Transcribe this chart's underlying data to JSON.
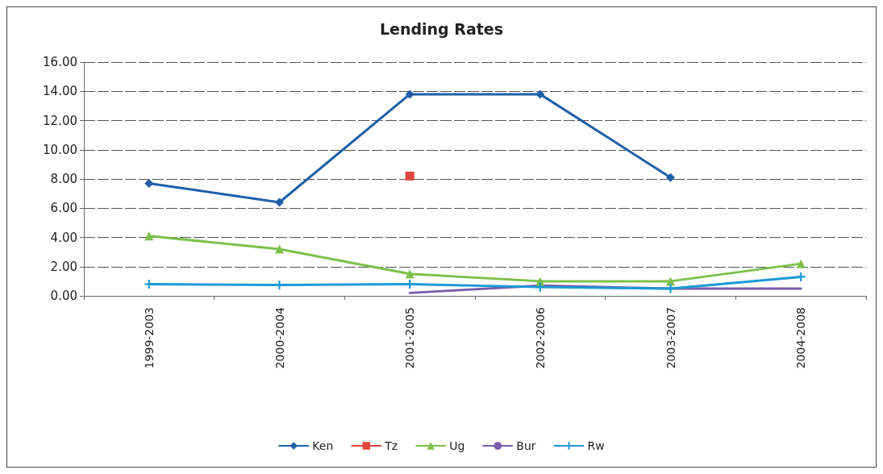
{
  "chart_data": {
    "type": "line",
    "title": "Lending Rates",
    "categories": [
      "1999-2003",
      "2000-2004",
      "2001-2005",
      "2002-2006",
      "2003-2007",
      "2004-2008"
    ],
    "series": [
      {
        "name": "Ken",
        "color": "#1f5fa8",
        "marker": "diamond",
        "values": [
          7.7,
          6.4,
          13.8,
          13.8,
          8.1,
          null
        ]
      },
      {
        "name": "Tz",
        "color": "#e0463f",
        "marker": "square",
        "values": [
          null,
          null,
          8.2,
          null,
          null,
          null
        ]
      },
      {
        "name": "Ug",
        "color": "#7cc04a",
        "marker": "triangle",
        "values": [
          4.1,
          3.2,
          1.5,
          1.0,
          1.0,
          2.2
        ]
      },
      {
        "name": "Bur",
        "color": "#7a5ba8",
        "marker": "none",
        "values": [
          null,
          null,
          0.2,
          0.7,
          0.5,
          0.5
        ]
      },
      {
        "name": "Rw",
        "color": "#1a9ad6",
        "marker": "cross",
        "values": [
          0.8,
          0.75,
          0.8,
          0.6,
          0.5,
          1.3
        ]
      }
    ],
    "ylim": [
      0,
      16
    ],
    "yticks": [
      {
        "value": 0,
        "label": "0.00"
      },
      {
        "value": 2,
        "label": "2.00"
      },
      {
        "value": 4,
        "label": "4.00"
      },
      {
        "value": 6,
        "label": "6.00"
      },
      {
        "value": 8,
        "label": "8.00"
      },
      {
        "value": 10,
        "label": "10.00"
      },
      {
        "value": 12,
        "label": "12.00"
      },
      {
        "value": 14,
        "label": "14.00"
      },
      {
        "value": 16,
        "label": "16.00"
      }
    ],
    "grid": "y",
    "legend": "bottom"
  }
}
